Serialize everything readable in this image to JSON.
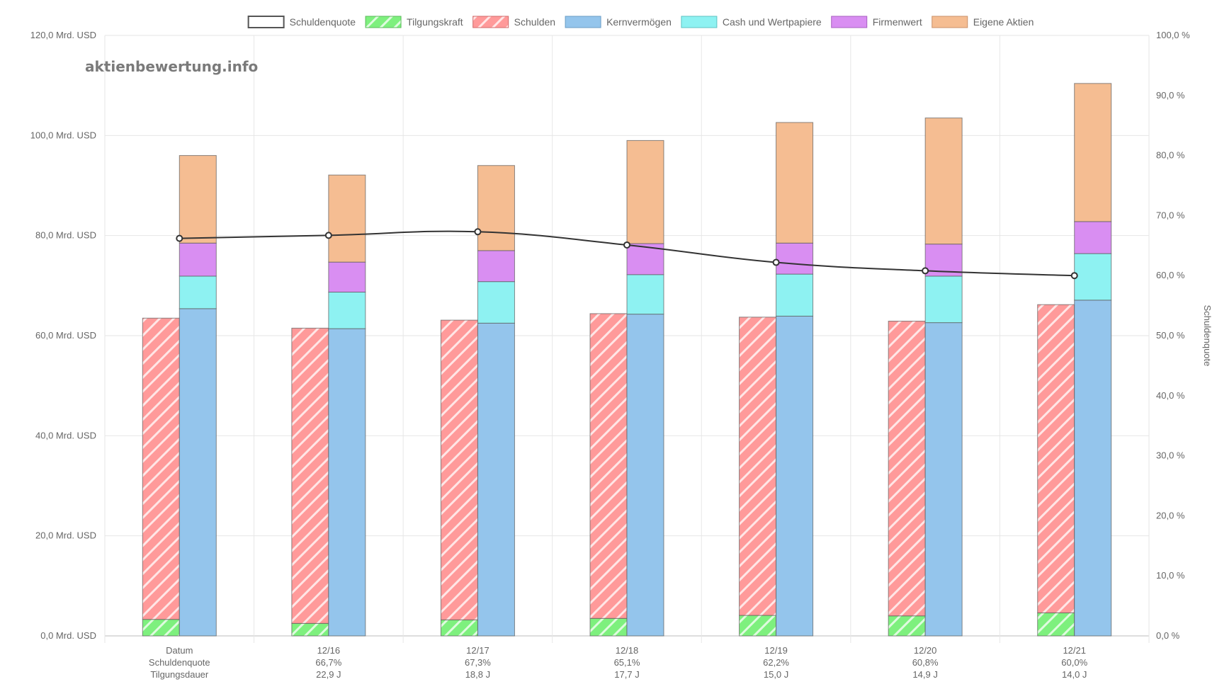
{
  "watermark": "aktienbewertung.info",
  "chart_data": {
    "type": "bar",
    "categories": [
      "Datum",
      "12/16",
      "12/17",
      "12/18",
      "12/19",
      "12/20",
      "12/21"
    ],
    "category_rows": [
      {
        "label": "Schuldenquote",
        "values": [
          "66,7%",
          "67,3%",
          "65,1%",
          "62,2%",
          "60,8%",
          "60,0%"
        ]
      },
      {
        "label": "Tilgungsdauer",
        "values": [
          "22,9 J",
          "18,8 J",
          "17,7 J",
          "15,0 J",
          "14,9 J",
          "14,0 J"
        ]
      }
    ],
    "unit_left": "Mrd. USD",
    "ylim_left": [
      0,
      120
    ],
    "yticks_left": [
      "0,0 Mrd. USD",
      "20,0 Mrd. USD",
      "40,0 Mrd. USD",
      "60,0 Mrd. USD",
      "80,0 Mrd. USD",
      "100,0 Mrd. USD",
      "120,0 Mrd. USD"
    ],
    "ylim_right": [
      0,
      100
    ],
    "yticks_right": [
      "0,0 %",
      "10,0 %",
      "20,0 %",
      "30,0 %",
      "40,0 %",
      "50,0 %",
      "60,0 %",
      "70,0 %",
      "80,0 %",
      "90,0 %",
      "100,0 %"
    ],
    "ylabel_right": "Schuldenquote",
    "grid": true,
    "legend_position": "top-center",
    "legend": [
      {
        "name": "Schuldenquote",
        "color": "#ffffff",
        "border": "#555555",
        "hatch": false
      },
      {
        "name": "Tilgungskraft",
        "color": "#7ef07e",
        "border": "#5bb95b",
        "hatch": true
      },
      {
        "name": "Schulden",
        "color": "#ff9a9a",
        "border": "#d06a6a",
        "hatch": true
      },
      {
        "name": "Kernvermögen",
        "color": "#94c5ec",
        "border": "#6a9cc4",
        "hatch": false
      },
      {
        "name": "Cash und Wertpapiere",
        "color": "#8ef2f2",
        "border": "#5ec2c2",
        "hatch": false
      },
      {
        "name": "Firmenwert",
        "color": "#d98ef2",
        "border": "#a860c0",
        "hatch": false
      },
      {
        "name": "Eigene Aktien",
        "color": "#f5bd92",
        "border": "#c99068",
        "hatch": false
      }
    ],
    "series": [
      {
        "name": "Tilgungskraft",
        "stack": "debt",
        "values": [
          3.3,
          2.5,
          3.2,
          3.5,
          4.1,
          4.0,
          4.6
        ]
      },
      {
        "name": "Schulden",
        "stack": "debt",
        "values": [
          60.2,
          59.0,
          59.9,
          60.9,
          59.6,
          58.9,
          61.6
        ]
      },
      {
        "name": "Kernvermögen",
        "stack": "assets",
        "values": [
          65.4,
          61.4,
          62.5,
          64.3,
          63.9,
          62.6,
          67.1
        ]
      },
      {
        "name": "Cash und Wertpapiere",
        "stack": "assets",
        "values": [
          6.5,
          7.3,
          8.3,
          7.9,
          8.4,
          9.3,
          9.3
        ]
      },
      {
        "name": "Firmenwert",
        "stack": "assets",
        "values": [
          6.6,
          6.0,
          6.2,
          6.2,
          6.2,
          6.4,
          6.4
        ]
      },
      {
        "name": "Eigene Aktien",
        "stack": "assets",
        "values": [
          17.5,
          17.4,
          17.0,
          20.6,
          24.1,
          25.2,
          27.6
        ]
      },
      {
        "name": "Schuldenquote",
        "type": "line",
        "axis": "right",
        "values": [
          66.2,
          66.7,
          67.3,
          65.1,
          62.2,
          60.8,
          60.0
        ]
      }
    ]
  }
}
